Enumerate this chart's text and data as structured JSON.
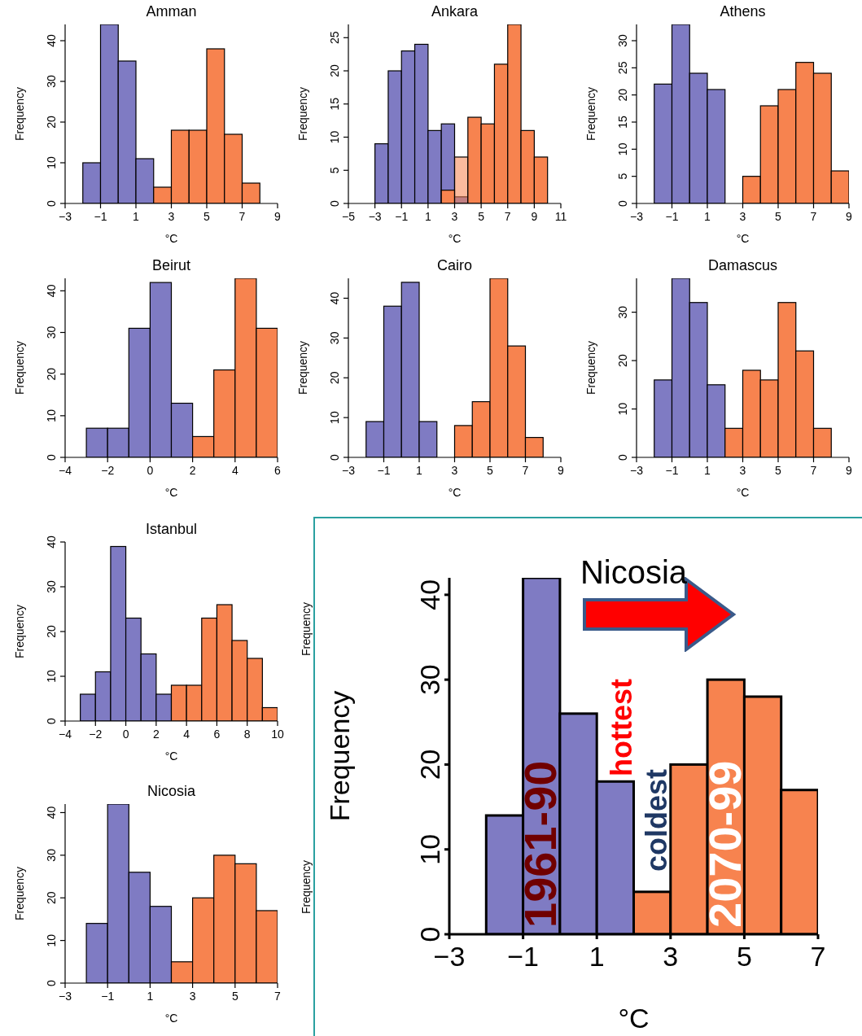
{
  "chart_data": [
    {
      "type": "histogram",
      "title": "Amman",
      "xlabel": "°C",
      "ylabel": "Frequency",
      "bins": [
        -2,
        -1,
        0,
        1,
        2,
        3,
        4,
        5,
        6,
        7,
        8
      ],
      "series": [
        {
          "color": "#7f7bc3",
          "values": [
            10,
            44,
            35,
            11,
            null,
            null,
            null,
            null,
            null,
            null
          ]
        },
        {
          "color": "#f7834f",
          "values": [
            null,
            null,
            null,
            null,
            4,
            18,
            18,
            38,
            17,
            5
          ]
        }
      ],
      "xlim": [
        -3,
        9
      ],
      "xticks": [
        -3,
        -1,
        1,
        3,
        5,
        7,
        9
      ],
      "ylim": [
        0,
        44
      ],
      "yticks": [
        0,
        10,
        20,
        30,
        40
      ]
    },
    {
      "type": "histogram",
      "title": "Ankara",
      "xlabel": "°C",
      "ylabel": "Frequency",
      "bins": [
        -4,
        -3,
        -2,
        -1,
        0,
        1,
        2,
        3,
        4,
        5,
        6,
        7,
        8,
        9,
        10
      ],
      "series": [
        {
          "color": "#7f7bc3",
          "values": [
            0,
            9,
            20,
            23,
            24,
            11,
            12,
            1,
            null,
            null,
            null,
            null,
            null,
            null
          ]
        },
        {
          "color": "#f7834f",
          "values": [
            null,
            null,
            null,
            null,
            null,
            null,
            2,
            7,
            13,
            12,
            21,
            27,
            11,
            7
          ]
        }
      ],
      "xlim": [
        -5,
        11
      ],
      "xticks": [
        -5,
        -3,
        -1,
        1,
        3,
        5,
        7,
        9,
        11
      ],
      "ylim": [
        0,
        27
      ],
      "yticks": [
        0,
        5,
        10,
        15,
        20,
        25
      ]
    },
    {
      "type": "histogram",
      "title": "Athens",
      "xlabel": "°C",
      "ylabel": "Frequency",
      "bins": [
        -2,
        -1,
        0,
        1,
        2,
        3,
        4,
        5,
        6,
        7,
        8,
        9
      ],
      "series": [
        {
          "color": "#7f7bc3",
          "values": [
            22,
            33,
            24,
            21,
            null,
            null,
            null,
            null,
            null,
            null,
            null
          ]
        },
        {
          "color": "#f7834f",
          "values": [
            null,
            null,
            null,
            null,
            null,
            5,
            18,
            21,
            26,
            24,
            6
          ]
        }
      ],
      "xlim": [
        -3,
        9
      ],
      "xticks": [
        -3,
        -1,
        1,
        3,
        5,
        7,
        9
      ],
      "ylim": [
        0,
        33
      ],
      "yticks": [
        0,
        5,
        10,
        15,
        20,
        25,
        30
      ]
    },
    {
      "type": "histogram",
      "title": "Beirut",
      "xlabel": "°C",
      "ylabel": "Frequency",
      "bins": [
        -3,
        -2,
        -1,
        0,
        1,
        2,
        3,
        4,
        5,
        6
      ],
      "series": [
        {
          "color": "#7f7bc3",
          "values": [
            7,
            7,
            31,
            42,
            13,
            null,
            null,
            null,
            null
          ]
        },
        {
          "color": "#f7834f",
          "values": [
            null,
            null,
            null,
            null,
            null,
            5,
            21,
            43,
            31
          ]
        }
      ],
      "xlim": [
        -4,
        6
      ],
      "xticks": [
        -4,
        -2,
        0,
        2,
        4,
        6
      ],
      "ylim": [
        0,
        43
      ],
      "yticks": [
        0,
        10,
        20,
        30,
        40
      ]
    },
    {
      "type": "histogram",
      "title": "Cairo",
      "xlabel": "°C",
      "ylabel": "Frequency",
      "bins": [
        -2,
        -1,
        0,
        1,
        2,
        3,
        4,
        5,
        6,
        7,
        8
      ],
      "series": [
        {
          "color": "#7f7bc3",
          "values": [
            9,
            38,
            44,
            9,
            0,
            null,
            null,
            null,
            null,
            null
          ]
        },
        {
          "color": "#f7834f",
          "values": [
            null,
            null,
            null,
            null,
            null,
            8,
            14,
            45,
            28,
            5
          ]
        }
      ],
      "xlim": [
        -3,
        9
      ],
      "xticks": [
        -3,
        -1,
        1,
        3,
        5,
        7,
        9
      ],
      "ylim": [
        0,
        45
      ],
      "yticks": [
        0,
        10,
        20,
        30,
        40
      ]
    },
    {
      "type": "histogram",
      "title": "Damascus",
      "xlabel": "°C",
      "ylabel": "Frequency",
      "bins": [
        -2,
        -1,
        0,
        1,
        2,
        3,
        4,
        5,
        6,
        7,
        8
      ],
      "series": [
        {
          "color": "#7f7bc3",
          "values": [
            16,
            37,
            32,
            15,
            null,
            null,
            null,
            null,
            null,
            null
          ]
        },
        {
          "color": "#f7834f",
          "values": [
            null,
            null,
            null,
            null,
            6,
            18,
            16,
            32,
            22,
            6
          ]
        }
      ],
      "xlim": [
        -3,
        9
      ],
      "xticks": [
        -3,
        -1,
        1,
        3,
        5,
        7,
        9
      ],
      "ylim": [
        0,
        37
      ],
      "yticks": [
        0,
        10,
        20,
        30
      ]
    },
    {
      "type": "histogram",
      "title": "Istanbul",
      "xlabel": "°C",
      "ylabel": "Frequency",
      "bins": [
        -3,
        -2,
        -1,
        0,
        1,
        2,
        3,
        4,
        5,
        6,
        7,
        8,
        9,
        10
      ],
      "series": [
        {
          "color": "#7f7bc3",
          "values": [
            6,
            11,
            39,
            23,
            15,
            6,
            null,
            null,
            null,
            null,
            null,
            null,
            null
          ]
        },
        {
          "color": "#f7834f",
          "values": [
            null,
            null,
            null,
            null,
            null,
            null,
            8,
            8,
            23,
            26,
            18,
            14,
            3
          ]
        }
      ],
      "xlim": [
        -4,
        10
      ],
      "xticks": [
        -4,
        -2,
        0,
        2,
        4,
        6,
        8,
        10
      ],
      "ylim": [
        0,
        40
      ],
      "yticks": [
        0,
        10,
        20,
        30,
        40
      ]
    },
    {
      "type": "histogram",
      "title": "Nicosia",
      "xlabel": "°C",
      "ylabel": "Frequency",
      "bins": [
        -2,
        -1,
        0,
        1,
        2,
        3,
        4,
        5,
        6,
        7
      ],
      "series": [
        {
          "color": "#7f7bc3",
          "values": [
            14,
            42,
            26,
            18,
            null,
            null,
            null,
            null,
            null
          ]
        },
        {
          "color": "#f7834f",
          "values": [
            null,
            null,
            null,
            null,
            5,
            20,
            30,
            28,
            17
          ]
        }
      ],
      "xlim": [
        -3,
        7
      ],
      "xticks": [
        -3,
        -1,
        1,
        3,
        5,
        7
      ],
      "ylim": [
        0,
        42
      ],
      "yticks": [
        0,
        10,
        20,
        30,
        40
      ]
    },
    {
      "type": "histogram",
      "title": "Nicosia",
      "xlabel": "°C",
      "ylabel": "Frequency",
      "bins": [
        -2,
        -1,
        0,
        1,
        2,
        3,
        4,
        5,
        6,
        7
      ],
      "series": [
        {
          "name": "1961-90",
          "color": "#7f7bc3",
          "values": [
            14,
            42,
            26,
            18,
            null,
            null,
            null,
            null,
            null
          ]
        },
        {
          "name": "2070-99",
          "color": "#f7834f",
          "values": [
            null,
            null,
            null,
            null,
            5,
            20,
            30,
            28,
            17
          ]
        }
      ],
      "xlim": [
        -3,
        7
      ],
      "xticks": [
        -3,
        -1,
        1,
        3,
        5,
        7
      ],
      "ylim": [
        0,
        42
      ],
      "yticks": [
        0,
        10,
        20,
        30,
        40
      ],
      "annotations": [
        "hottest",
        "coldest",
        "Frequency",
        "Frequency"
      ]
    }
  ]
}
